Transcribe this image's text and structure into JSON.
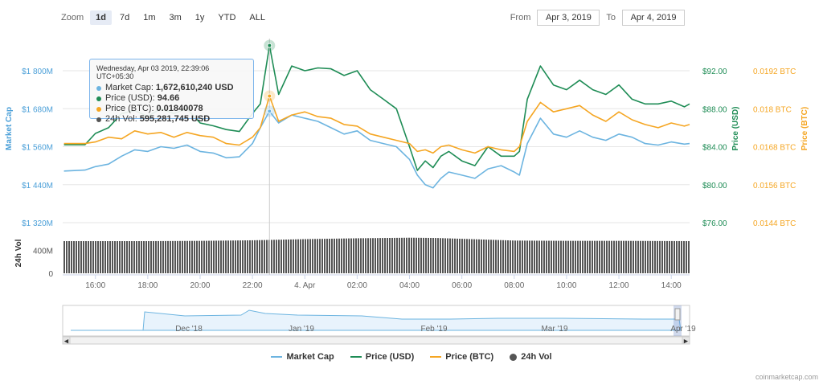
{
  "zoom": {
    "label": "Zoom",
    "options": [
      "1d",
      "7d",
      "1m",
      "3m",
      "1y",
      "YTD",
      "ALL"
    ],
    "active": "1d"
  },
  "range": {
    "from_label": "From",
    "from_value": "Apr 3, 2019",
    "to_label": "To",
    "to_value": "Apr 4, 2019"
  },
  "tooltip": {
    "header": "Wednesday, Apr 03 2019, 22:39:06 UTC+05:30",
    "rows": [
      {
        "label": "Market Cap:",
        "value": "1,672,610,240 USD",
        "color": "#6cb4e0"
      },
      {
        "label": "Price (USD):",
        "value": "94.66",
        "color": "#1e8c55"
      },
      {
        "label": "Price (BTC):",
        "value": "0.01840078",
        "color": "#f5a623"
      },
      {
        "label": "24h Vol:",
        "value": "595,281,745 USD",
        "color": "#555555"
      }
    ]
  },
  "legend": [
    {
      "label": "Market Cap",
      "color": "#6cb4e0",
      "kind": "line"
    },
    {
      "label": "Price (USD)",
      "color": "#1e8c55",
      "kind": "line"
    },
    {
      "label": "Price (BTC)",
      "color": "#f5a623",
      "kind": "line"
    },
    {
      "label": "24h Vol",
      "color": "#555555",
      "kind": "dot"
    }
  ],
  "credit": "coinmarketcap.com",
  "chart_data": {
    "type": "line",
    "x_ticks": [
      "16:00",
      "18:00",
      "20:00",
      "22:00",
      "4. Apr",
      "02:00",
      "04:00",
      "06:00",
      "08:00",
      "10:00",
      "12:00",
      "14:00"
    ],
    "x_tick_hours": [
      16,
      18,
      20,
      22,
      24,
      26,
      28,
      30,
      32,
      34,
      36,
      38
    ],
    "x_range_hours": [
      14.75,
      38.7
    ],
    "axes": {
      "market_cap": {
        "title": "Market Cap",
        "ticks": [
          "$1 800M",
          "$1 680M",
          "$1 560M",
          "$1 440M",
          "$1 320M"
        ],
        "tick_values": [
          1800,
          1680,
          1560,
          1440,
          1320
        ],
        "range": [
          1320,
          1800
        ],
        "color": "#6cb4e0"
      },
      "price_usd": {
        "title": "Price (USD)",
        "ticks": [
          "$92.00",
          "$88.00",
          "$84.00",
          "$80.00",
          "$76.00"
        ],
        "tick_values": [
          92,
          88,
          84,
          80,
          76
        ],
        "range": [
          76,
          92
        ],
        "color": "#1e8c55"
      },
      "price_btc": {
        "title": "Price (BTC)",
        "ticks": [
          "0.0192 BTC",
          "0.018 BTC",
          "0.0168 BTC",
          "0.0156 BTC",
          "0.0144 BTC"
        ],
        "tick_values": [
          0.0192,
          0.018,
          0.0168,
          0.0156,
          0.0144
        ],
        "range": [
          0.0144,
          0.0192
        ],
        "color": "#f5a623"
      },
      "volume": {
        "title": "24h Vol",
        "ticks": [
          "400M",
          "0"
        ],
        "tick_values": [
          400,
          0
        ],
        "range": [
          0,
          700
        ]
      }
    },
    "series": [
      {
        "name": "Market Cap",
        "axis": "market_cap",
        "color": "#6cb4e0",
        "x": [
          14.8,
          15.6,
          16.0,
          16.5,
          17.0,
          17.5,
          18.0,
          18.5,
          19.0,
          19.5,
          20.0,
          20.5,
          21.0,
          21.5,
          22.0,
          22.3,
          22.65,
          23.0,
          23.5,
          24.0,
          24.5,
          25.0,
          25.5,
          26.0,
          26.5,
          27.0,
          27.5,
          28.0,
          28.3,
          28.6,
          28.9,
          29.2,
          29.5,
          30.0,
          30.5,
          31.0,
          31.5,
          32.0,
          32.2,
          32.5,
          33.0,
          33.5,
          34.0,
          34.5,
          35.0,
          35.5,
          36.0,
          36.5,
          37.0,
          37.5,
          38.0,
          38.5,
          38.7
        ],
        "y": [
          1483,
          1486,
          1497,
          1505,
          1530,
          1550,
          1545,
          1560,
          1555,
          1565,
          1545,
          1540,
          1525,
          1528,
          1570,
          1620,
          1672,
          1635,
          1660,
          1650,
          1640,
          1620,
          1600,
          1610,
          1580,
          1570,
          1560,
          1520,
          1470,
          1440,
          1430,
          1460,
          1480,
          1470,
          1460,
          1490,
          1500,
          1480,
          1470,
          1570,
          1650,
          1600,
          1590,
          1610,
          1590,
          1580,
          1600,
          1590,
          1570,
          1565,
          1575,
          1568,
          1570
        ]
      },
      {
        "name": "Price (USD)",
        "axis": "price_usd",
        "color": "#1e8c55",
        "x": [
          14.8,
          15.6,
          16.0,
          16.5,
          17.0,
          17.5,
          18.0,
          18.5,
          19.0,
          19.5,
          20.0,
          20.5,
          21.0,
          21.5,
          22.0,
          22.3,
          22.65,
          23.0,
          23.5,
          24.0,
          24.5,
          25.0,
          25.5,
          26.0,
          26.5,
          27.0,
          27.5,
          28.0,
          28.3,
          28.6,
          28.9,
          29.2,
          29.5,
          30.0,
          30.5,
          31.0,
          31.5,
          32.0,
          32.2,
          32.5,
          33.0,
          33.5,
          34.0,
          34.5,
          35.0,
          35.5,
          36.0,
          36.5,
          37.0,
          37.5,
          38.0,
          38.5,
          38.7
        ],
        "y": [
          84.2,
          84.2,
          85.4,
          86.0,
          87.5,
          87.8,
          87.2,
          88.0,
          87.5,
          88.0,
          86.5,
          86.2,
          85.8,
          85.6,
          87.5,
          88.5,
          94.66,
          89.5,
          92.5,
          92.0,
          92.3,
          92.2,
          91.5,
          92.0,
          90.0,
          89.0,
          88.0,
          84.0,
          81.5,
          82.5,
          81.8,
          83.0,
          83.5,
          82.5,
          82.0,
          84.0,
          83.0,
          83.0,
          83.5,
          89.0,
          92.5,
          90.5,
          90.0,
          91.0,
          90.0,
          89.5,
          90.5,
          89.0,
          88.5,
          88.5,
          88.8,
          88.2,
          88.5
        ]
      },
      {
        "name": "Price (BTC)",
        "axis": "price_btc",
        "color": "#f5a623",
        "x": [
          14.8,
          15.6,
          16.0,
          16.5,
          17.0,
          17.5,
          18.0,
          18.5,
          19.0,
          19.5,
          20.0,
          20.5,
          21.0,
          21.5,
          22.0,
          22.3,
          22.65,
          23.0,
          23.5,
          24.0,
          24.5,
          25.0,
          25.5,
          26.0,
          26.5,
          27.0,
          27.5,
          28.0,
          28.3,
          28.6,
          28.9,
          29.2,
          29.5,
          30.0,
          30.5,
          31.0,
          31.5,
          32.0,
          32.2,
          32.5,
          33.0,
          33.5,
          34.0,
          34.5,
          35.0,
          35.5,
          36.0,
          36.5,
          37.0,
          37.5,
          38.0,
          38.5,
          38.7
        ],
        "y": [
          0.0169,
          0.0169,
          0.01695,
          0.0171,
          0.01705,
          0.0173,
          0.0172,
          0.01725,
          0.0171,
          0.01725,
          0.01715,
          0.0171,
          0.0169,
          0.01685,
          0.0171,
          0.0174,
          0.0184,
          0.0176,
          0.0178,
          0.0179,
          0.01775,
          0.0177,
          0.0175,
          0.01745,
          0.0172,
          0.0171,
          0.017,
          0.0169,
          0.01665,
          0.0167,
          0.0166,
          0.0168,
          0.01685,
          0.0167,
          0.0166,
          0.0168,
          0.0167,
          0.01665,
          0.0168,
          0.0176,
          0.0182,
          0.0179,
          0.018,
          0.0181,
          0.0178,
          0.0176,
          0.0179,
          0.01765,
          0.0175,
          0.0174,
          0.01755,
          0.01745,
          0.0175
        ]
      },
      {
        "name": "24h Vol",
        "axis": "volume",
        "color": "#555555",
        "kind": "column",
        "x": [
          14.8,
          18.0,
          20.0,
          22.0,
          24.0,
          26.0,
          28.0,
          29.0,
          30.0,
          32.0,
          34.0,
          36.0,
          38.7
        ],
        "y": [
          560,
          560,
          565,
          575,
          595,
          610,
          620,
          615,
          600,
          570,
          565,
          565,
          560
        ]
      }
    ],
    "navigator": {
      "ticks": [
        "Dec '18",
        "Jan '19",
        "Feb '19",
        "Mar '19",
        "Apr '19"
      ],
      "tick_x": [
        235,
        375,
        540,
        690,
        850
      ]
    },
    "crosshair_x_hour": 22.65
  }
}
